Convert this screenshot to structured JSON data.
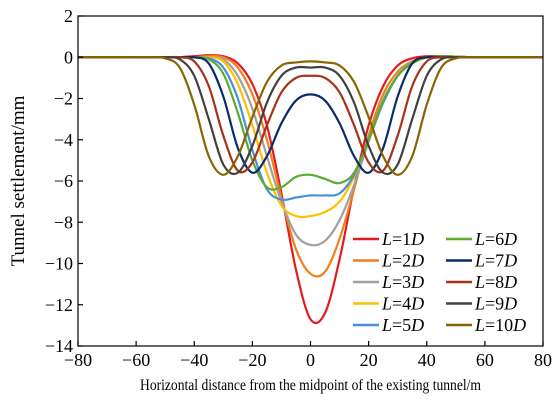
{
  "chart_data": {
    "type": "line",
    "xlabel": "Horizontal distance from the midpoint of the existing tunnel/m",
    "ylabel": "Tunnel settlement/mm",
    "xlim": [
      -80,
      80
    ],
    "ylim": [
      -14,
      2
    ],
    "xticks": [
      -80,
      -60,
      -40,
      -20,
      0,
      20,
      40,
      60,
      80
    ],
    "yticks": [
      2,
      0,
      -2,
      -4,
      -6,
      -8,
      -10,
      -12,
      -14
    ],
    "xtick_labels": [
      "−80",
      "−60",
      "−40",
      "−20",
      "0",
      "20",
      "40",
      "60",
      "80"
    ],
    "ytick_labels": [
      "2",
      "0",
      "−2",
      "−4",
      "−6",
      "−8",
      "−10",
      "−12",
      "−14"
    ],
    "grid": false,
    "legend_position": "bottom-right",
    "legend_columns": 2,
    "x": [
      -80,
      -75,
      -70,
      -65,
      -60,
      -55,
      -50,
      -45,
      -40,
      -35,
      -30,
      -25,
      -20,
      -15,
      -10,
      -5,
      0,
      5,
      10,
      15,
      20,
      25,
      30,
      35,
      40,
      45,
      50,
      55,
      60,
      65,
      70,
      75,
      80
    ],
    "series": [
      {
        "name": "L=1D",
        "name_parts": [
          "L",
          "=1",
          "D"
        ],
        "color": "#e41a1c",
        "values": [
          0,
          0,
          0,
          0,
          0,
          0,
          0,
          0,
          0.05,
          0.1,
          0.05,
          -0.3,
          -1.3,
          -3.3,
          -6.6,
          -10.3,
          -12.7,
          -12.4,
          -9.8,
          -6.3,
          -3.3,
          -1.4,
          -0.4,
          -0.05,
          0.05,
          0.05,
          0.02,
          0,
          0,
          0,
          0,
          0,
          0
        ]
      },
      {
        "name": "L=2D",
        "name_parts": [
          "L",
          "=2",
          "D"
        ],
        "color": "#f07f1f",
        "values": [
          0,
          0,
          0,
          0,
          0,
          0,
          0,
          0,
          0,
          0.05,
          0,
          -0.5,
          -1.8,
          -4.0,
          -6.8,
          -9.3,
          -10.5,
          -10.4,
          -8.8,
          -6.4,
          -3.8,
          -1.8,
          -0.7,
          -0.2,
          0,
          0.05,
          0.03,
          0,
          0,
          0,
          0,
          0,
          0
        ]
      },
      {
        "name": "L=3D",
        "name_parts": [
          "L",
          "=3",
          "D"
        ],
        "color": "#a0a0a0",
        "values": [
          0,
          0,
          0,
          0,
          0,
          0,
          0,
          0,
          0,
          0,
          -0.1,
          -0.9,
          -2.5,
          -4.8,
          -7.0,
          -8.6,
          -9.1,
          -8.9,
          -7.9,
          -6.2,
          -4.1,
          -2.2,
          -0.9,
          -0.25,
          0,
          0.05,
          0.03,
          0,
          0,
          0,
          0,
          0,
          0
        ]
      },
      {
        "name": "L=4D",
        "name_parts": [
          "L",
          "=4",
          "D"
        ],
        "color": "#ffc000",
        "values": [
          0,
          0,
          0,
          0,
          0,
          0,
          0,
          0,
          0,
          0,
          -0.2,
          -1.3,
          -3.3,
          -5.6,
          -7.2,
          -7.7,
          -7.7,
          -7.5,
          -7.0,
          -5.8,
          -4.0,
          -2.2,
          -0.9,
          -0.3,
          0,
          0.05,
          0.03,
          0,
          0,
          0,
          0,
          0,
          0
        ]
      },
      {
        "name": "L=5D",
        "name_parts": [
          "L",
          "=5",
          "D"
        ],
        "color": "#4a90d9",
        "values": [
          0,
          0,
          0,
          0,
          0,
          0,
          0,
          0,
          0,
          -0.05,
          -0.5,
          -2.0,
          -4.5,
          -6.4,
          -6.9,
          -6.8,
          -6.7,
          -6.7,
          -6.6,
          -5.7,
          -4.0,
          -2.2,
          -0.9,
          -0.3,
          0,
          0.05,
          0.03,
          0,
          0,
          0,
          0,
          0,
          0
        ]
      },
      {
        "name": "L=6D",
        "name_parts": [
          "L",
          "=6",
          "D"
        ],
        "color": "#5aab2e",
        "values": [
          0,
          0,
          0,
          0,
          0,
          0,
          0,
          0,
          0,
          -0.1,
          -0.8,
          -2.7,
          -5.0,
          -6.3,
          -6.3,
          -5.8,
          -5.7,
          -5.9,
          -6.1,
          -5.6,
          -4.0,
          -2.1,
          -0.9,
          -0.3,
          0,
          0.05,
          0.03,
          0,
          0,
          0,
          0,
          0,
          0
        ]
      },
      {
        "name": "L=7D",
        "name_parts": [
          "L",
          "=7",
          "D"
        ],
        "color": "#0b2a6b",
        "values": [
          0,
          0,
          0,
          0,
          0,
          0,
          0,
          0,
          0,
          -0.3,
          -1.9,
          -4.4,
          -5.6,
          -4.8,
          -3.2,
          -2.1,
          -1.8,
          -2.1,
          -3.2,
          -4.8,
          -5.6,
          -4.4,
          -1.9,
          -0.3,
          0,
          0,
          0,
          0,
          0,
          0,
          0,
          0,
          0
        ]
      },
      {
        "name": "L=8D",
        "name_parts": [
          "L",
          "=8",
          "D"
        ],
        "color": "#a83218",
        "values": [
          0,
          0,
          0,
          0,
          0,
          0,
          0,
          0,
          -0.2,
          -1.4,
          -3.8,
          -5.5,
          -5.1,
          -3.3,
          -1.7,
          -1.0,
          -0.9,
          -1.0,
          -1.7,
          -3.3,
          -5.1,
          -5.5,
          -3.8,
          -1.4,
          -0.2,
          0,
          0,
          0,
          0,
          0,
          0,
          0,
          0
        ]
      },
      {
        "name": "L=9D",
        "name_parts": [
          "L",
          "=9",
          "D"
        ],
        "color": "#404040",
        "values": [
          0,
          0,
          0,
          0,
          0,
          0,
          0,
          -0.1,
          -0.9,
          -3.0,
          -5.2,
          -5.6,
          -4.3,
          -2.2,
          -0.9,
          -0.5,
          -0.5,
          -0.5,
          -0.9,
          -2.2,
          -4.3,
          -5.6,
          -5.2,
          -3.0,
          -0.9,
          -0.1,
          0,
          0,
          0,
          0,
          0,
          0,
          0
        ]
      },
      {
        "name": "L=10D",
        "name_parts": [
          "L",
          "=10",
          "D"
        ],
        "color": "#8a6400",
        "values": [
          0,
          0,
          0,
          0,
          0,
          0,
          -0.05,
          -0.5,
          -2.3,
          -4.8,
          -5.7,
          -4.8,
          -2.9,
          -1.2,
          -0.4,
          -0.25,
          -0.2,
          -0.25,
          -0.4,
          -1.2,
          -2.9,
          -4.8,
          -5.7,
          -4.8,
          -2.3,
          -0.5,
          -0.05,
          0,
          0,
          0,
          0,
          0,
          0
        ]
      }
    ]
  }
}
